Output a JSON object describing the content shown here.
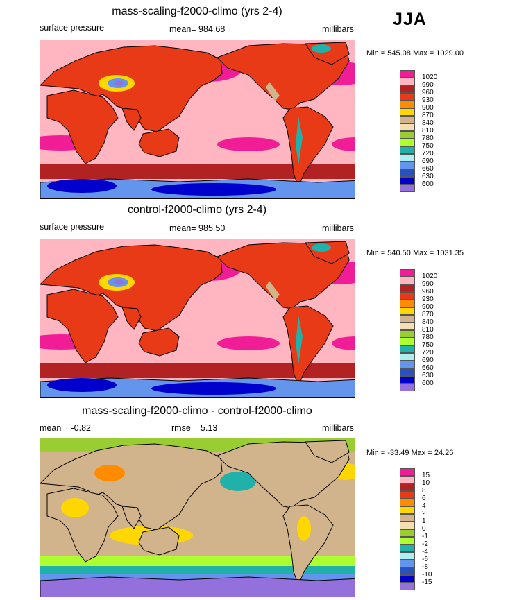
{
  "season": "JJA",
  "chart_data": [
    {
      "type": "heatmap",
      "title": "mass-scaling-f2000-climo (yrs 2-4)",
      "left_label": "surface pressure",
      "center_label": "mean= 984.68",
      "right_label": "millibars",
      "range_text": "Min = 545.08 Max = 1029.00",
      "min": 545.08,
      "max": 1029.0,
      "mean": 984.68,
      "colorbar": {
        "levels": [
          "1020",
          "990",
          "960",
          "930",
          "900",
          "870",
          "840",
          "810",
          "780",
          "750",
          "720",
          "690",
          "660",
          "630",
          "600"
        ],
        "colors": [
          "#f01d97",
          "#ffb6c1",
          "#b22222",
          "#e83a16",
          "#ff8c00",
          "#ffd700",
          "#d2b48c",
          "#f5deb3",
          "#9acd32",
          "#adff2f",
          "#20b2aa",
          "#afeeee",
          "#6495ed",
          "#2a52be",
          "#0000cd",
          "#9370db"
        ]
      }
    },
    {
      "type": "heatmap",
      "title": "control-f2000-climo (yrs 2-4)",
      "left_label": "surface pressure",
      "center_label": "mean= 985.50",
      "right_label": "millibars",
      "range_text": "Min = 540.50 Max = 1031.35",
      "min": 540.5,
      "max": 1031.35,
      "mean": 985.5,
      "colorbar": {
        "levels": [
          "1020",
          "990",
          "960",
          "930",
          "900",
          "870",
          "840",
          "810",
          "780",
          "750",
          "720",
          "690",
          "660",
          "630",
          "600"
        ],
        "colors": [
          "#f01d97",
          "#ffb6c1",
          "#b22222",
          "#e83a16",
          "#ff8c00",
          "#ffd700",
          "#d2b48c",
          "#f5deb3",
          "#9acd32",
          "#adff2f",
          "#20b2aa",
          "#afeeee",
          "#6495ed",
          "#2a52be",
          "#0000cd",
          "#9370db"
        ]
      }
    },
    {
      "type": "heatmap",
      "title": "mass-scaling-f2000-climo - control-f2000-climo",
      "left_label": "mean =  -0.82",
      "center_label": "rmse =   5.13",
      "right_label": "millibars",
      "range_text": "Min = -33.49 Max =  24.26",
      "min": -33.49,
      "max": 24.26,
      "mean": -0.82,
      "rmse": 5.13,
      "colorbar": {
        "levels": [
          "15",
          "10",
          "8",
          "6",
          "4",
          "2",
          "1",
          "0",
          "-1",
          "-2",
          "-4",
          "-6",
          "-8",
          "-10",
          "-15"
        ],
        "colors": [
          "#f01d97",
          "#ffb6c1",
          "#b22222",
          "#e83a16",
          "#ff8c00",
          "#ffd700",
          "#d2b48c",
          "#f5deb3",
          "#9acd32",
          "#adff2f",
          "#20b2aa",
          "#afeeee",
          "#6495ed",
          "#2a52be",
          "#0000cd",
          "#9370db"
        ]
      }
    }
  ]
}
